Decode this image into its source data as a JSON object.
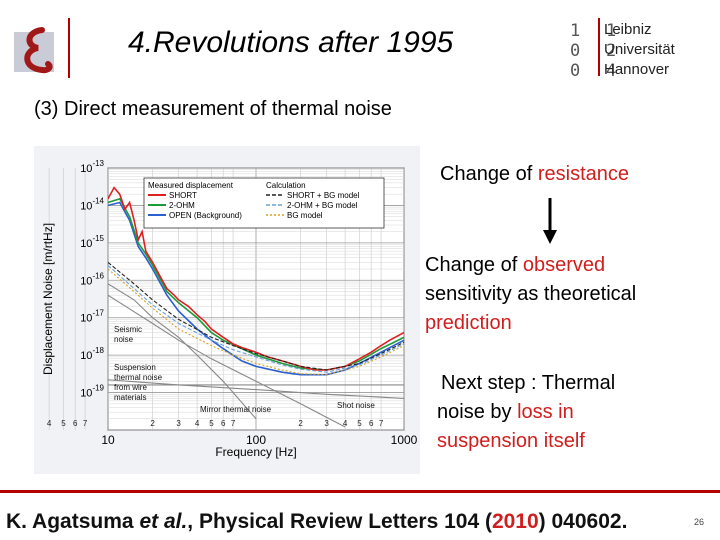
{
  "header": {
    "title": "4.Revolutions after 1995",
    "university_lines": [
      "Leibniz",
      "Universität",
      "Hannover"
    ],
    "logo_digits": [
      "1",
      "0",
      "0",
      "1",
      "2",
      "4"
    ],
    "accent_color": "#b00000"
  },
  "subtitle": "(3) Direct measurement of thermal noise",
  "right_text": {
    "block1": {
      "prefix": "Change of ",
      "highlight": "resistance"
    },
    "block2": {
      "line1_prefix": "Change of ",
      "line1_highlight": "observed",
      "line2": "sensitivity as theoretical",
      "line3_highlight": "prediction"
    },
    "block3": {
      "line1": "Next step : Thermal",
      "line2_prefix": "noise by ",
      "line2_highlight": "loss in",
      "line3_highlight": "suspension itself"
    },
    "highlight_color": "#d01e1e"
  },
  "footer": {
    "authors": "K. Agatsuma",
    "et_al": "et al.",
    "journal": ", Physical Review Letters 104 (",
    "year": "2010",
    "article": ") 040602.",
    "slide_number": "26"
  },
  "chart_data": {
    "type": "line",
    "xlabel": "Frequency [Hz]",
    "ylabel": "Displacement Noise [m/rtHz]",
    "xscale": "log",
    "yscale": "log",
    "xlim": [
      10,
      1000
    ],
    "ylim": [
      1e-20,
      1e-13
    ],
    "x_major_ticks": [
      {
        "value": 10,
        "label": "10"
      },
      {
        "value": 100,
        "label": "100"
      },
      {
        "value": 1000,
        "label": "1000"
      }
    ],
    "x_minor_ticks": [
      {
        "value": 2,
        "label": "2"
      },
      {
        "value": 3,
        "label": "3"
      },
      {
        "value": 4,
        "label": "4"
      },
      {
        "value": 5,
        "label": "5"
      },
      {
        "value": 6,
        "label": "6"
      },
      {
        "value": 7,
        "label": "7"
      },
      {
        "value": 20,
        "label": "2"
      },
      {
        "value": 30,
        "label": "3"
      },
      {
        "value": 40,
        "label": "4"
      },
      {
        "value": 50,
        "label": "5"
      },
      {
        "value": 60,
        "label": "6"
      },
      {
        "value": 70,
        "label": "7"
      },
      {
        "value": 200,
        "label": "2"
      },
      {
        "value": 300,
        "label": "3"
      },
      {
        "value": 400,
        "label": "4"
      },
      {
        "value": 500,
        "label": "5"
      },
      {
        "value": 600,
        "label": "6"
      },
      {
        "value": 700,
        "label": "7"
      }
    ],
    "y_ticks": [
      {
        "exp": -13,
        "base": "10",
        "sup": "-13"
      },
      {
        "exp": -14,
        "base": "10",
        "sup": "-14"
      },
      {
        "exp": -15,
        "base": "10",
        "sup": "-15"
      },
      {
        "exp": -16,
        "base": "10",
        "sup": "-16"
      },
      {
        "exp": -17,
        "base": "10",
        "sup": "-17"
      },
      {
        "exp": -18,
        "base": "10",
        "sup": "-18"
      },
      {
        "exp": -19,
        "base": "10",
        "sup": "-19"
      }
    ],
    "grid": true,
    "legend": {
      "placement": "top-right",
      "measured_title": "Measured displacement",
      "calc_title": "Calculation",
      "measured": [
        {
          "name": "SHORT",
          "color": "#e02020"
        },
        {
          "name": "2-OHM",
          "color": "#1f9a3a"
        },
        {
          "name": "OPEN (Background)",
          "color": "#2a5fd0"
        }
      ],
      "calc": [
        {
          "name": "SHORT + BG model",
          "color": "#222222",
          "dash": "4,2"
        },
        {
          "name": "2-OHM + BG model",
          "color": "#6aa0d8",
          "dash": "4,2"
        },
        {
          "name": "BG model",
          "color": "#d8a020",
          "dash": "2,2"
        }
      ]
    },
    "series": [
      {
        "name": "SHORT",
        "color": "#e02020",
        "x": [
          10,
          11,
          12,
          13,
          14,
          15,
          16,
          17,
          18,
          20,
          22,
          25,
          28,
          30,
          35,
          40,
          45,
          50,
          60,
          70,
          80,
          100,
          120,
          150,
          200,
          250,
          300,
          400,
          500,
          600,
          700,
          800,
          1000
        ],
        "y": [
          1.5e-14,
          3e-14,
          2e-14,
          8e-15,
          1.2e-14,
          4e-15,
          1.2e-15,
          2e-15,
          6e-16,
          3e-16,
          1.5e-16,
          6e-17,
          4e-17,
          3e-17,
          2e-17,
          1.2e-17,
          8e-18,
          5e-18,
          3e-18,
          2e-18,
          1.6e-18,
          1.2e-18,
          9e-19,
          7e-19,
          5e-19,
          4e-19,
          4e-19,
          5e-19,
          8e-19,
          1.2e-18,
          1.8e-18,
          2.5e-18,
          4e-18
        ]
      },
      {
        "name": "2-OHM",
        "color": "#1f9a3a",
        "x": [
          10,
          12,
          14,
          16,
          18,
          20,
          25,
          30,
          40,
          50,
          60,
          80,
          100,
          150,
          200,
          300,
          400,
          500,
          700,
          1000
        ],
        "y": [
          1.2e-14,
          1.5e-14,
          5e-15,
          1e-15,
          5e-16,
          2.5e-16,
          5e-17,
          2.5e-17,
          1e-17,
          4e-18,
          2.5e-18,
          1.5e-18,
          1e-18,
          6e-19,
          4.5e-19,
          4e-19,
          5e-19,
          7e-19,
          1.5e-18,
          3e-18
        ]
      },
      {
        "name": "OPEN (Background)",
        "color": "#2a5fd0",
        "x": [
          10,
          12,
          14,
          16,
          18,
          20,
          25,
          30,
          40,
          50,
          60,
          80,
          100,
          150,
          200,
          300,
          400,
          500,
          700,
          1000
        ],
        "y": [
          1e-14,
          1.2e-14,
          4e-15,
          8e-16,
          4e-16,
          2e-16,
          4e-17,
          1.5e-17,
          5e-18,
          2.5e-18,
          1.5e-18,
          7e-19,
          5e-19,
          3.5e-19,
          3e-19,
          3e-19,
          4e-19,
          6e-19,
          1.2e-18,
          2.5e-18
        ]
      },
      {
        "name": "SHORT + BG model",
        "color": "#222222",
        "dash": "4,2",
        "x": [
          10,
          15,
          20,
          30,
          50,
          70,
          100,
          150,
          200,
          300,
          500,
          700,
          1000
        ],
        "y": [
          3e-16,
          8e-17,
          3e-17,
          9e-18,
          3e-18,
          1.8e-18,
          1.1e-18,
          7e-19,
          5e-19,
          4e-19,
          6e-19,
          1.1e-18,
          2.2e-18
        ]
      },
      {
        "name": "2-OHM + BG model",
        "color": "#6aa0d8",
        "dash": "4,2",
        "x": [
          10,
          15,
          20,
          30,
          50,
          70,
          100,
          150,
          200,
          300,
          500,
          700,
          1000
        ],
        "y": [
          2.5e-16,
          6e-17,
          2.2e-17,
          7e-18,
          2.5e-18,
          1.4e-18,
          9e-19,
          5.5e-19,
          4.2e-19,
          3.5e-19,
          5.5e-19,
          1e-18,
          2e-18
        ]
      },
      {
        "name": "BG model",
        "color": "#d8a020",
        "dash": "2,2",
        "x": [
          10,
          15,
          20,
          30,
          50,
          70,
          100,
          150,
          200,
          300,
          500,
          700,
          1000
        ],
        "y": [
          2e-16,
          5e-17,
          1.8e-17,
          5e-18,
          1.8e-18,
          1e-18,
          6e-19,
          4e-19,
          3.2e-19,
          3e-19,
          5e-19,
          9e-19,
          1.8e-18
        ]
      },
      {
        "name": "Seismic noise",
        "color": "#888888",
        "x": [
          10,
          15,
          20,
          30,
          40,
          60,
          100
        ],
        "y": [
          8e-17,
          3e-17,
          1e-17,
          3e-18,
          1e-18,
          2e-19,
          2e-20
        ]
      },
      {
        "name": "Suspension thermal noise from wire materials",
        "color": "#888888",
        "x": [
          10,
          20,
          30,
          50,
          100,
          200,
          400
        ],
        "y": [
          4e-17,
          7e-18,
          2.5e-18,
          8e-19,
          2e-19,
          5e-20,
          1.2e-20
        ]
      },
      {
        "name": "Mirror thermal noise",
        "color": "#888888",
        "x": [
          10,
          30,
          100,
          300,
          1000
        ],
        "y": [
          2.2e-19,
          1.6e-19,
          1.2e-19,
          9e-20,
          7e-20
        ]
      },
      {
        "name": "Shot noise",
        "color": "#888888",
        "x": [
          10,
          30,
          100,
          300,
          1000
        ],
        "y": [
          1.6e-19,
          1.6e-19,
          1.6e-19,
          1.6e-19,
          1.6e-19
        ]
      }
    ],
    "annotations": [
      {
        "text": "Seismic noise",
        "lines": [
          "Seismic",
          "noise"
        ]
      },
      {
        "text": "Suspension thermal noise from wire materials",
        "lines": [
          "Suspension",
          "thermal noise",
          "from wire",
          "materials"
        ]
      },
      {
        "text": "Mirror thermal noise",
        "lines": [
          "Mirror thermal noise"
        ]
      },
      {
        "text": "Shot noise",
        "lines": [
          "Shot noise"
        ]
      }
    ]
  }
}
